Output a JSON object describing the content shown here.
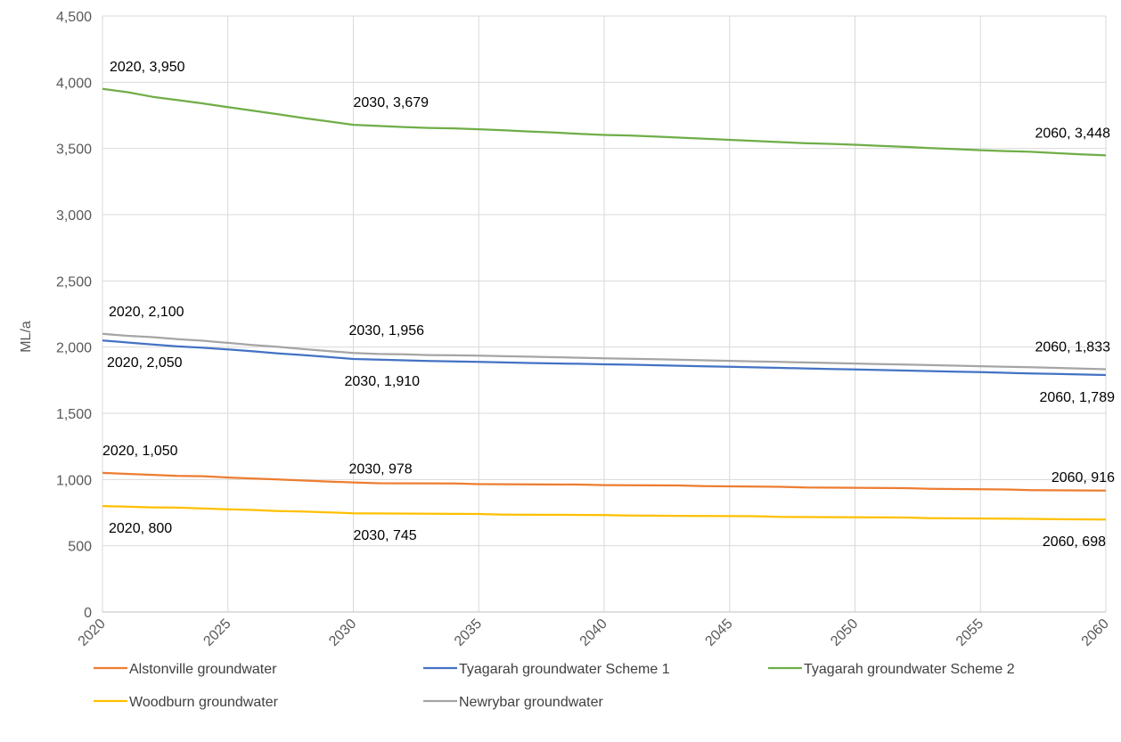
{
  "chart_data": {
    "type": "line",
    "title": "",
    "xlabel": "",
    "ylabel": "ML/a",
    "xlim": [
      2020,
      2060
    ],
    "ylim": [
      0,
      4500
    ],
    "x_ticks": [
      "2020",
      "2025",
      "2030",
      "2035",
      "2040",
      "2045",
      "2050",
      "2055",
      "2060"
    ],
    "y_ticks": [
      "0",
      "500",
      "1,000",
      "1,500",
      "2,000",
      "2,500",
      "3,000",
      "3,500",
      "4,000",
      "4,500"
    ],
    "grid": true,
    "legend_position": "bottom",
    "series": [
      {
        "name": "Alstonville groundwater",
        "color": "#ED7D31",
        "points": [
          [
            2020,
            1050
          ],
          [
            2022,
            1035
          ],
          [
            2023,
            1028
          ],
          [
            2024,
            1025
          ],
          [
            2025,
            1015
          ],
          [
            2027,
            1000
          ],
          [
            2029,
            985
          ],
          [
            2030,
            978
          ],
          [
            2031,
            972
          ],
          [
            2034,
            970
          ],
          [
            2035,
            965
          ],
          [
            2039,
            962
          ],
          [
            2040,
            958
          ],
          [
            2043,
            955
          ],
          [
            2044,
            950
          ],
          [
            2047,
            945
          ],
          [
            2048,
            940
          ],
          [
            2052,
            935
          ],
          [
            2053,
            930
          ],
          [
            2056,
            925
          ],
          [
            2057,
            920
          ],
          [
            2060,
            916
          ]
        ],
        "labels": [
          "2020, 1,050",
          "2030, 978",
          "2060, 916"
        ]
      },
      {
        "name": "Tyagarah groundwater Scheme 1",
        "color": "#4472C4",
        "points": [
          [
            2020,
            2050
          ],
          [
            2021,
            2035
          ],
          [
            2022,
            2020
          ],
          [
            2023,
            2005
          ],
          [
            2024,
            1995
          ],
          [
            2025,
            1982
          ],
          [
            2026,
            1968
          ],
          [
            2027,
            1952
          ],
          [
            2028,
            1940
          ],
          [
            2029,
            1925
          ],
          [
            2030,
            1910
          ],
          [
            2031,
            1905
          ],
          [
            2032,
            1900
          ],
          [
            2033,
            1895
          ],
          [
            2034,
            1892
          ],
          [
            2035,
            1888
          ],
          [
            2036,
            1884
          ],
          [
            2037,
            1880
          ],
          [
            2038,
            1877
          ],
          [
            2039,
            1874
          ],
          [
            2040,
            1870
          ],
          [
            2041,
            1867
          ],
          [
            2042,
            1863
          ],
          [
            2043,
            1859
          ],
          [
            2044,
            1855
          ],
          [
            2045,
            1851
          ],
          [
            2046,
            1847
          ],
          [
            2047,
            1843
          ],
          [
            2048,
            1839
          ],
          [
            2049,
            1835
          ],
          [
            2050,
            1831
          ],
          [
            2051,
            1827
          ],
          [
            2052,
            1823
          ],
          [
            2053,
            1819
          ],
          [
            2054,
            1815
          ],
          [
            2055,
            1811
          ],
          [
            2056,
            1806
          ],
          [
            2057,
            1801
          ],
          [
            2058,
            1797
          ],
          [
            2059,
            1793
          ],
          [
            2060,
            1789
          ]
        ],
        "labels": [
          "2020, 2,050",
          "2030, 1,910",
          "2060, 1,789"
        ]
      },
      {
        "name": "Tyagarah groundwater Scheme 2",
        "color": "#70AD47",
        "points": [
          [
            2020,
            3950
          ],
          [
            2021,
            3925
          ],
          [
            2022,
            3890
          ],
          [
            2023,
            3865
          ],
          [
            2024,
            3840
          ],
          [
            2025,
            3812
          ],
          [
            2026,
            3785
          ],
          [
            2027,
            3758
          ],
          [
            2028,
            3730
          ],
          [
            2029,
            3705
          ],
          [
            2030,
            3679
          ],
          [
            2031,
            3670
          ],
          [
            2032,
            3662
          ],
          [
            2033,
            3655
          ],
          [
            2034,
            3652
          ],
          [
            2035,
            3645
          ],
          [
            2036,
            3637
          ],
          [
            2037,
            3628
          ],
          [
            2038,
            3620
          ],
          [
            2039,
            3610
          ],
          [
            2040,
            3602
          ],
          [
            2041,
            3598
          ],
          [
            2042,
            3590
          ],
          [
            2043,
            3582
          ],
          [
            2044,
            3573
          ],
          [
            2045,
            3565
          ],
          [
            2046,
            3557
          ],
          [
            2047,
            3548
          ],
          [
            2048,
            3540
          ],
          [
            2049,
            3535
          ],
          [
            2050,
            3528
          ],
          [
            2051,
            3520
          ],
          [
            2052,
            3512
          ],
          [
            2053,
            3503
          ],
          [
            2054,
            3495
          ],
          [
            2055,
            3487
          ],
          [
            2056,
            3480
          ],
          [
            2057,
            3475
          ],
          [
            2058,
            3465
          ],
          [
            2059,
            3456
          ],
          [
            2060,
            3448
          ]
        ],
        "labels": [
          "2020, 3,950",
          "2030, 3,679",
          "2060, 3,448"
        ]
      },
      {
        "name": "Woodburn groundwater",
        "color": "#FFC000",
        "points": [
          [
            2020,
            800
          ],
          [
            2022,
            790
          ],
          [
            2023,
            788
          ],
          [
            2025,
            775
          ],
          [
            2026,
            770
          ],
          [
            2027,
            762
          ],
          [
            2028,
            758
          ],
          [
            2029,
            752
          ],
          [
            2030,
            745
          ],
          [
            2035,
            740
          ],
          [
            2036,
            735
          ],
          [
            2040,
            732
          ],
          [
            2041,
            728
          ],
          [
            2046,
            723
          ],
          [
            2047,
            718
          ],
          [
            2052,
            713
          ],
          [
            2053,
            708
          ],
          [
            2057,
            703
          ],
          [
            2058,
            700
          ],
          [
            2060,
            698
          ]
        ],
        "labels": [
          "2020, 800",
          "2030, 745",
          "2060, 698"
        ]
      },
      {
        "name": "Newrybar groundwater",
        "color": "#A5A5A5",
        "points": [
          [
            2020,
            2100
          ],
          [
            2021,
            2085
          ],
          [
            2022,
            2075
          ],
          [
            2023,
            2060
          ],
          [
            2024,
            2048
          ],
          [
            2025,
            2032
          ],
          [
            2026,
            2015
          ],
          [
            2027,
            2002
          ],
          [
            2028,
            1985
          ],
          [
            2029,
            1970
          ],
          [
            2030,
            1956
          ],
          [
            2031,
            1948
          ],
          [
            2032,
            1945
          ],
          [
            2033,
            1940
          ],
          [
            2034,
            1938
          ],
          [
            2035,
            1935
          ],
          [
            2036,
            1931
          ],
          [
            2037,
            1928
          ],
          [
            2038,
            1924
          ],
          [
            2039,
            1920
          ],
          [
            2040,
            1916
          ],
          [
            2041,
            1912
          ],
          [
            2042,
            1908
          ],
          [
            2043,
            1904
          ],
          [
            2044,
            1900
          ],
          [
            2045,
            1896
          ],
          [
            2046,
            1892
          ],
          [
            2047,
            1888
          ],
          [
            2048,
            1884
          ],
          [
            2049,
            1880
          ],
          [
            2050,
            1876
          ],
          [
            2051,
            1872
          ],
          [
            2052,
            1868
          ],
          [
            2053,
            1864
          ],
          [
            2054,
            1860
          ],
          [
            2055,
            1856
          ],
          [
            2056,
            1852
          ],
          [
            2057,
            1848
          ],
          [
            2058,
            1843
          ],
          [
            2059,
            1838
          ],
          [
            2060,
            1833
          ]
        ],
        "labels": [
          "2020, 2,100",
          "2030, 1,956",
          "2060, 1,833"
        ]
      }
    ]
  }
}
